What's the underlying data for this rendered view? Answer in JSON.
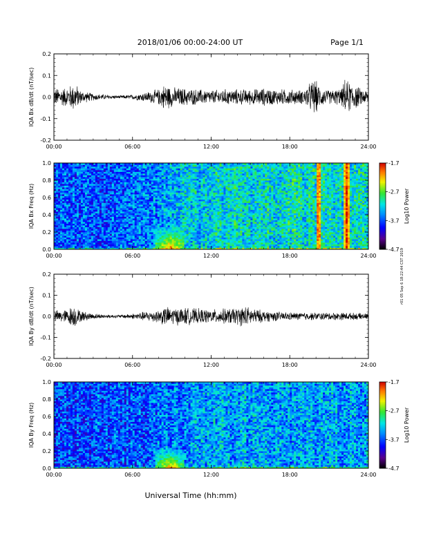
{
  "header": {
    "title": "2018/01/06  00:00-24:00 UT",
    "page": "Page 1/1"
  },
  "xlabel": "Universal Time (hh:mm)",
  "side_stamp": "r01 05 Sep 6 18:22:44 CST 2019",
  "colors": {
    "trace": "#000000",
    "background": "#ffffff"
  },
  "chart_data": [
    {
      "type": "line",
      "ylabel": "IQA Bx dB/dt (nT/sec)",
      "x_ticks": [
        "00:00",
        "06:00",
        "12:00",
        "18:00",
        "24:00"
      ],
      "x_range_hours": [
        0,
        24
      ],
      "y_ticks": [
        "-0.2",
        "-0.1",
        "0.0",
        "0.1",
        "0.2"
      ],
      "ylim": [
        -0.2,
        0.2
      ],
      "series": [
        {
          "x": [
            0,
            1,
            1.6,
            2,
            3,
            4,
            5,
            6,
            7,
            8,
            8.5,
            9,
            10,
            11,
            12,
            13,
            14,
            15,
            16,
            17,
            18,
            19,
            19.9,
            20.3,
            21,
            22,
            22.2,
            22.8,
            23.5,
            24
          ],
          "y": [
            0.045,
            0.05,
            0.075,
            0.035,
            0.018,
            0.012,
            0.008,
            0.012,
            0.025,
            0.04,
            0.07,
            0.05,
            0.045,
            0.04,
            0.035,
            0.04,
            0.04,
            0.04,
            0.045,
            0.04,
            0.04,
            0.035,
            0.095,
            0.05,
            0.035,
            0.045,
            0.09,
            0.07,
            0.04,
            0.035
          ]
        }
      ]
    },
    {
      "type": "heatmap",
      "ylabel": "IQA Bx Freq (Hz)",
      "x_ticks": [
        "00:00",
        "06:00",
        "12:00",
        "18:00",
        "24:00"
      ],
      "x_range_hours": [
        0,
        24
      ],
      "y_ticks": [
        "0.0",
        "0.2",
        "0.4",
        "0.6",
        "0.8",
        "1.0"
      ],
      "ylim": [
        0,
        1.0
      ],
      "colorbar": {
        "label": "Log10 Power",
        "ticks": [
          "-1.7",
          "-2.7",
          "-3.7",
          "-4.7"
        ],
        "range": [
          -4.7,
          -1.7
        ]
      },
      "baseline_log_power": [
        {
          "hour": 0,
          "value": -3.7
        },
        {
          "hour": 6,
          "value": -3.6
        },
        {
          "hour": 12,
          "value": -3.2
        },
        {
          "hour": 18,
          "value": -3.1
        },
        {
          "hour": 24,
          "value": -3.1
        }
      ],
      "enhancements": [
        {
          "hour_start": 7.8,
          "hour_end": 10.0,
          "freq_max": 0.25,
          "peak_log_power": -2.0
        },
        {
          "hour_start": 20.0,
          "hour_end": 20.4,
          "freq_max": 1.0,
          "peak_log_power": -1.8
        },
        {
          "hour_start": 22.1,
          "hour_end": 22.6,
          "freq_max": 1.0,
          "peak_log_power": -1.8
        }
      ]
    },
    {
      "type": "line",
      "ylabel": "IQA By dB/dt (nT/sec)",
      "x_ticks": [
        "00:00",
        "06:00",
        "12:00",
        "18:00",
        "24:00"
      ],
      "x_range_hours": [
        0,
        24
      ],
      "y_ticks": [
        "-0.2",
        "-0.1",
        "0.0",
        "0.1",
        "0.2"
      ],
      "ylim": [
        -0.2,
        0.2
      ],
      "series": [
        {
          "x": [
            0,
            1,
            1.5,
            2,
            3,
            4,
            5,
            6,
            7,
            8,
            8.5,
            9,
            10,
            11,
            12,
            13,
            14,
            14.5,
            15,
            16,
            17,
            18,
            19,
            20,
            21,
            22,
            23,
            24
          ],
          "y": [
            0.03,
            0.035,
            0.06,
            0.03,
            0.015,
            0.01,
            0.008,
            0.015,
            0.025,
            0.035,
            0.05,
            0.045,
            0.045,
            0.04,
            0.035,
            0.04,
            0.045,
            0.055,
            0.045,
            0.03,
            0.025,
            0.02,
            0.02,
            0.02,
            0.02,
            0.02,
            0.018,
            0.015
          ]
        }
      ]
    },
    {
      "type": "heatmap",
      "ylabel": "IQA By Freq (Hz)",
      "x_ticks": [
        "00:00",
        "06:00",
        "12:00",
        "18:00",
        "24:00"
      ],
      "x_range_hours": [
        0,
        24
      ],
      "y_ticks": [
        "0.0",
        "0.2",
        "0.4",
        "0.6",
        "0.8",
        "1.0"
      ],
      "ylim": [
        0,
        1.0
      ],
      "colorbar": {
        "label": "Log10 Power",
        "ticks": [
          "-1.7",
          "-2.7",
          "-3.7",
          "-4.7"
        ],
        "range": [
          -4.7,
          -1.7
        ]
      },
      "baseline_log_power": [
        {
          "hour": 0,
          "value": -3.7
        },
        {
          "hour": 6,
          "value": -3.7
        },
        {
          "hour": 12,
          "value": -3.4
        },
        {
          "hour": 18,
          "value": -3.4
        },
        {
          "hour": 24,
          "value": -3.4
        }
      ],
      "enhancements": [
        {
          "hour_start": 7.8,
          "hour_end": 10.0,
          "freq_max": 0.22,
          "peak_log_power": -2.1
        },
        {
          "hour_start": 12.0,
          "hour_end": 18.0,
          "freq_max": 0.05,
          "peak_log_power": -2.7
        }
      ]
    }
  ]
}
